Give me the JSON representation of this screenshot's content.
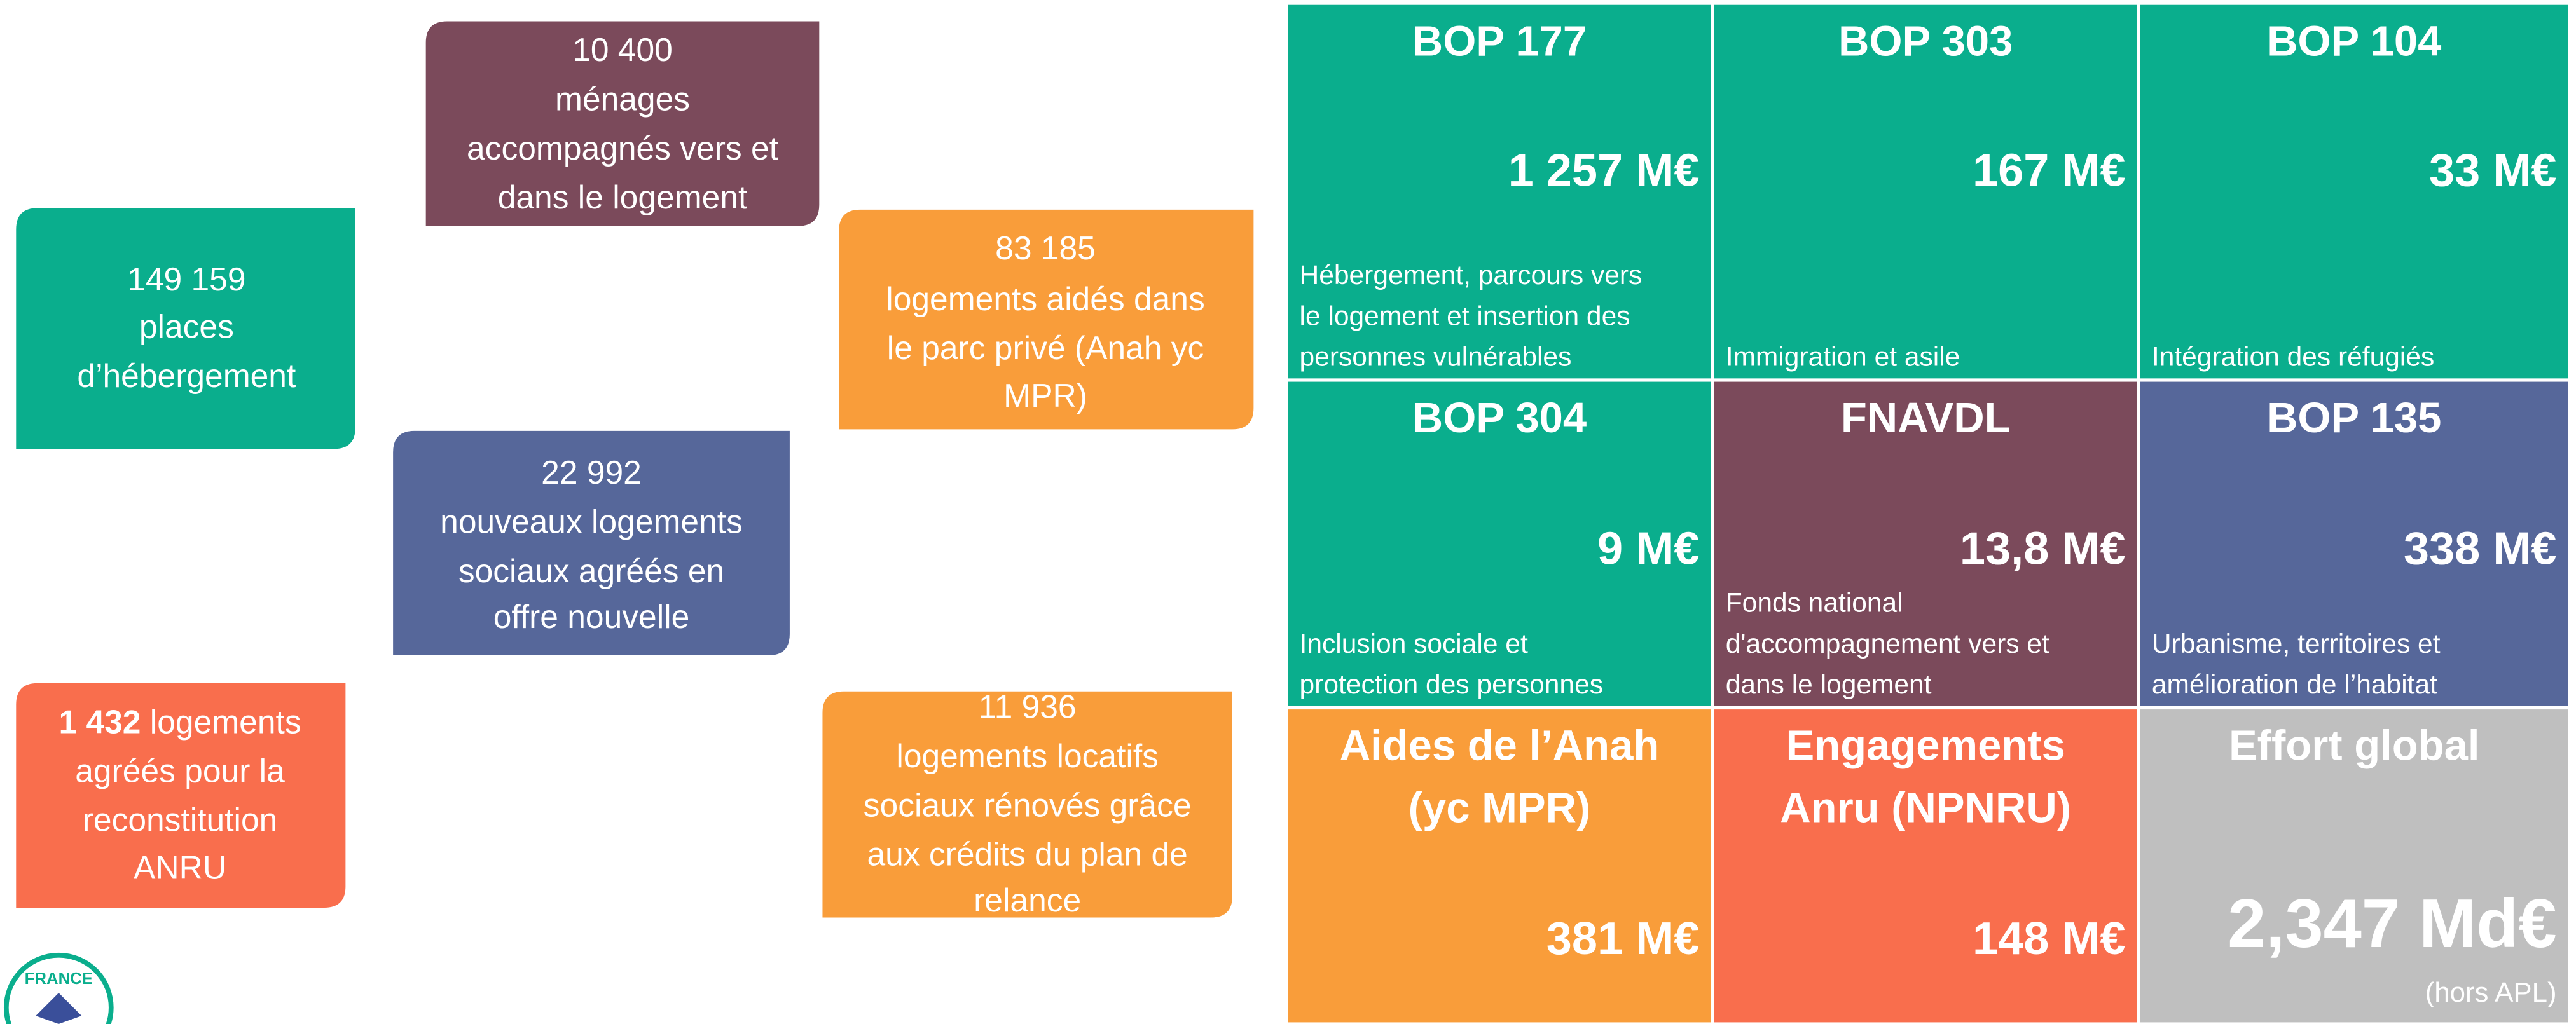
{
  "indicators": [
    {
      "number": "10 400",
      "lines": [
        "ménages",
        "accompagnés vers et",
        "dans le logement"
      ],
      "color": "#7b4a5b"
    },
    {
      "number": "149 159",
      "lines": [
        "places",
        "d’hébergement"
      ],
      "color": "#0aae8d"
    },
    {
      "number": "83 185",
      "lines": [
        "logements aidés dans",
        "le parc privé (Anah yc",
        "MPR)"
      ],
      "color": "#f99d3a"
    },
    {
      "number": "22 992",
      "lines": [
        "nouveaux logements",
        "sociaux agréés en",
        "offre nouvelle"
      ],
      "color": "#56679a"
    },
    {
      "number": "1 432",
      "lines": [
        " logements",
        "agréés pour la",
        "reconstitution",
        "ANRU"
      ],
      "color": "#f96e4d"
    },
    {
      "number": "11 936",
      "lines": [
        "logements locatifs",
        "sociaux rénovés grâce",
        "aux crédits du plan de",
        "relance"
      ],
      "color": "#f99d3a"
    }
  ],
  "tiles": [
    {
      "title": [
        "BOP 177"
      ],
      "amount": "1 257 M€",
      "description": [
        "Hébergement, parcours vers",
        "le logement et insertion des",
        "personnes vulnérables"
      ],
      "color": "#0aae8d"
    },
    {
      "title": [
        "BOP 303"
      ],
      "amount": "167 M€",
      "description": [
        "Immigration et asile"
      ],
      "color": "#0aae8d"
    },
    {
      "title": [
        "BOP 104"
      ],
      "amount": "33 M€",
      "description": [
        "Intégration des réfugiés"
      ],
      "color": "#0aae8d"
    },
    {
      "title": [
        "BOP 304"
      ],
      "amount": "9 M€",
      "description": [
        "Inclusion sociale et",
        "protection des personnes"
      ],
      "color": "#0aae8d"
    },
    {
      "title": [
        "FNAVDL"
      ],
      "amount": "13,8 M€",
      "description": [
        "Fonds national",
        "d'accompagnement vers et",
        "dans le logement"
      ],
      "color": "#7b4a5b"
    },
    {
      "title": [
        "BOP 135"
      ],
      "amount": "338 M€",
      "description": [
        "Urbanisme, territoires et",
        "amélioration de l’habitat"
      ],
      "color": "#56679a"
    },
    {
      "title": [
        "Aides de l’Anah",
        "(yc MPR)"
      ],
      "amount": "381 M€",
      "description": [],
      "color": "#f99d3a"
    },
    {
      "title": [
        "Engagements",
        "Anru (NPNRU)"
      ],
      "amount": "148 M€",
      "description": [],
      "color": "#f96e4d"
    },
    {
      "title": [
        "Effort global"
      ],
      "amount": "2,347 Md€",
      "note": "(hors APL)",
      "description": [],
      "color": "#bfbfbf"
    }
  ],
  "logo": "FRANCE"
}
